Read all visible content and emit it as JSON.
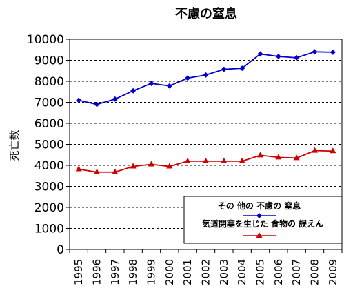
{
  "chart_data": {
    "type": "line",
    "title": "不慮の窒息",
    "xlabel": "",
    "ylabel": "死亡数",
    "x": [
      "1995",
      "1996",
      "1997",
      "1998",
      "1999",
      "2000",
      "2001",
      "2002",
      "2003",
      "2004",
      "2005",
      "2006",
      "2007",
      "2008",
      "2009"
    ],
    "ylim": [
      0,
      10000
    ],
    "yticks": [
      "0",
      "1000",
      "2000",
      "3000",
      "4000",
      "5000",
      "6000",
      "7000",
      "8000",
      "9000",
      "10000"
    ],
    "grid": true,
    "legend_position": "bottom-right",
    "series": [
      {
        "name": "その 他の 不慮の 窒息",
        "color": "#0000cc",
        "marker": "diamond",
        "values": [
          7100,
          6900,
          7150,
          7550,
          7900,
          7780,
          8150,
          8300,
          8570,
          8620,
          9300,
          9180,
          9120,
          9400,
          9380
        ]
      },
      {
        "name": "気道閉塞を生じた 食物の 誤えん",
        "color": "#cc0000",
        "marker": "triangle",
        "values": [
          3820,
          3680,
          3680,
          3950,
          4050,
          3950,
          4200,
          4200,
          4200,
          4200,
          4480,
          4380,
          4350,
          4700,
          4680
        ]
      }
    ]
  }
}
